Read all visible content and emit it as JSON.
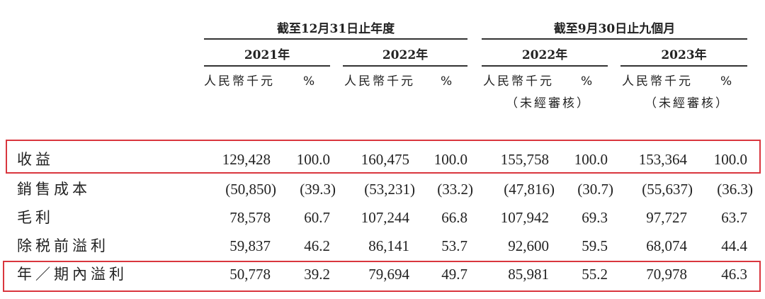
{
  "table": {
    "groups": [
      "截至12月31日止年度",
      "截至9月30日止九個月"
    ],
    "years": [
      "2021年",
      "2022年",
      "2022年",
      "2023年"
    ],
    "subheaders": [
      {
        "amount": "人民幣千元",
        "percent": "%"
      },
      {
        "amount": "人民幣千元",
        "percent": "%"
      },
      {
        "amount": "人民幣千元",
        "percent": "%",
        "note": "（未經審核）"
      },
      {
        "amount": "人民幣千元",
        "percent": "%",
        "note": "（未經審核）"
      }
    ],
    "rows": [
      {
        "label": "收益",
        "cells": [
          "129,428",
          "100.0",
          "160,475",
          "100.0",
          "155,758",
          "100.0",
          "153,364",
          "100.0"
        ]
      },
      {
        "label": "銷售成本",
        "cells": [
          "(50,850)",
          "(39.3)",
          "(53,231)",
          "(33.2)",
          "(47,816)",
          "(30.7)",
          "(55,637)",
          "(36.3)"
        ]
      },
      {
        "label": "毛利",
        "cells": [
          "78,578",
          "60.7",
          "107,244",
          "66.8",
          "107,942",
          "69.3",
          "97,727",
          "63.7"
        ]
      },
      {
        "label": "除税前溢利",
        "cells": [
          "59,837",
          "46.2",
          "86,141",
          "53.7",
          "92,600",
          "59.5",
          "68,074",
          "44.4"
        ]
      },
      {
        "label": "年／期內溢利",
        "cells": [
          "50,778",
          "39.2",
          "79,694",
          "49.7",
          "85,981",
          "55.2",
          "70,978",
          "46.3"
        ]
      }
    ]
  }
}
